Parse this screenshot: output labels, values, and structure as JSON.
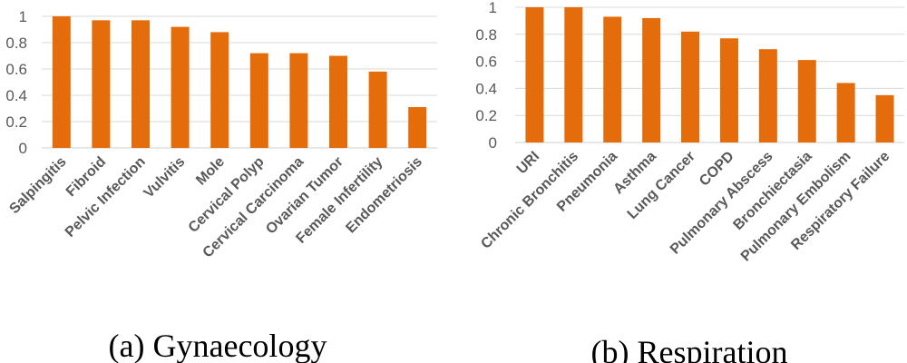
{
  "colors": {
    "bar": "#E46C0A"
  },
  "chart_data": [
    {
      "type": "bar",
      "caption": "(a) Gynaecology",
      "categories": [
        "Salpingitis",
        "Fibroid",
        "Pelvic Infection",
        "Vulvitis",
        "Mole",
        "Cervical Polyp",
        "Cervical Carcinoma",
        "Ovarian Tumor",
        "Female Infertility",
        "Endometriosis"
      ],
      "values": [
        1.0,
        0.97,
        0.97,
        0.92,
        0.88,
        0.72,
        0.72,
        0.7,
        0.58,
        0.31
      ],
      "yticks": [
        "0",
        "0.2",
        "0.4",
        "0.6",
        "0.8",
        "1"
      ],
      "ylim": [
        0,
        1
      ],
      "grid": true
    },
    {
      "type": "bar",
      "caption": "(b) Respiration",
      "categories": [
        "URI",
        "Chronic Bronchitis",
        "Pneumonia",
        "Asthma",
        "Lung Cancer",
        "COPD",
        "Pulmonary Abscess",
        "Bronchiectasia",
        "Pulmonary Embolism",
        "Respiratory Failure"
      ],
      "values": [
        1.0,
        1.0,
        0.93,
        0.92,
        0.82,
        0.77,
        0.69,
        0.61,
        0.44,
        0.35
      ],
      "yticks": [
        "0",
        "0.2",
        "0.4",
        "0.6",
        "0.8",
        "1"
      ],
      "ylim": [
        0,
        1
      ],
      "grid": true
    }
  ]
}
